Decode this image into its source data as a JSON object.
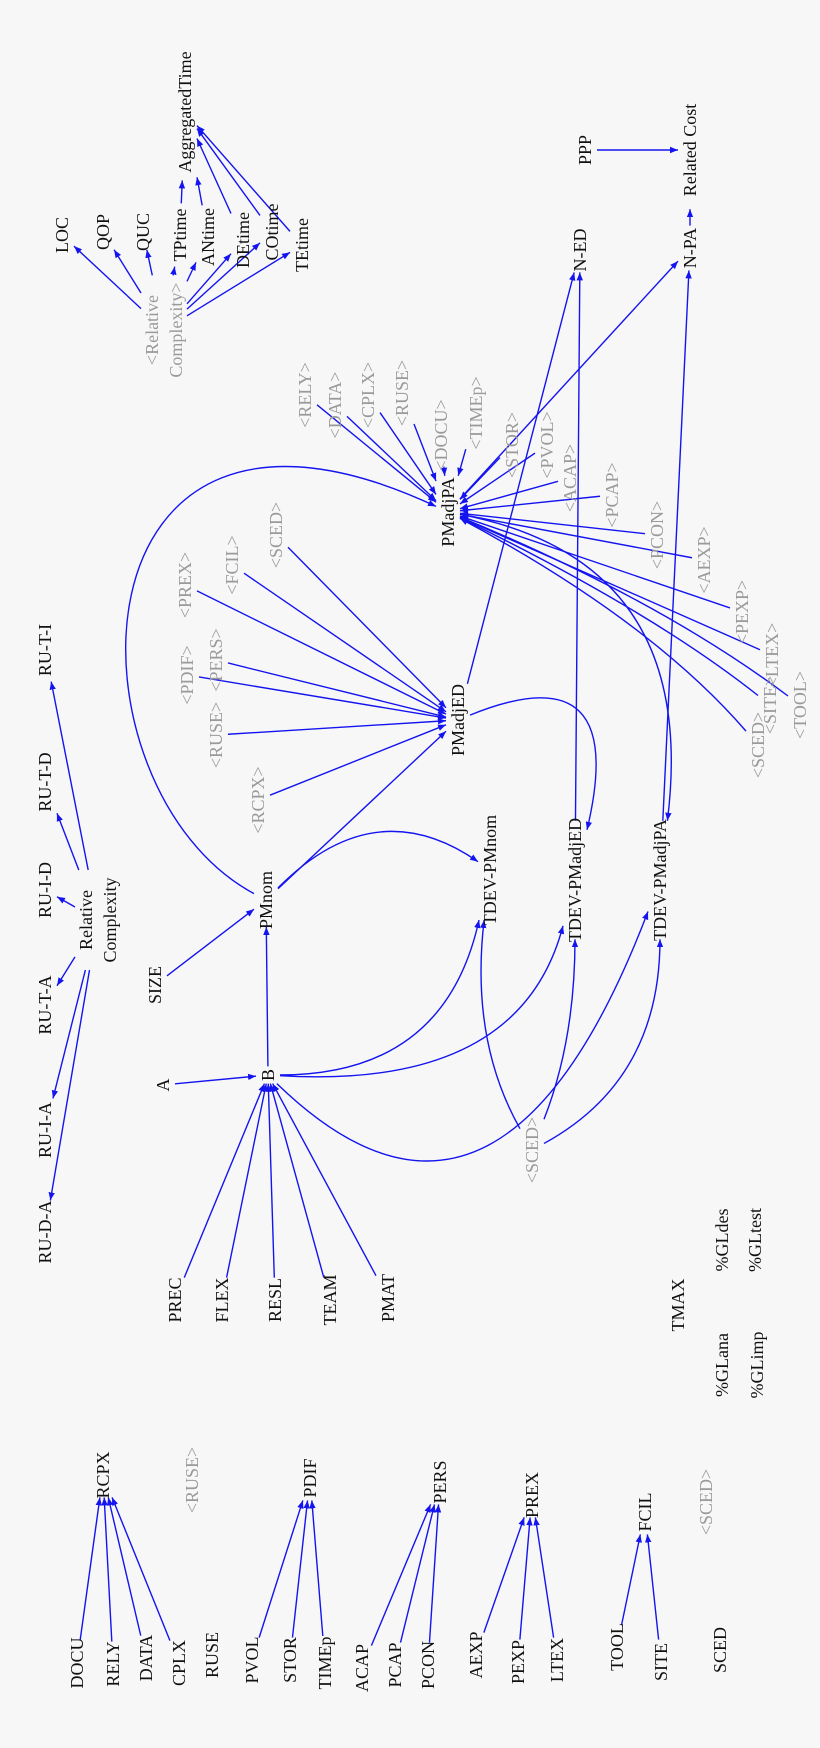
{
  "colors": {
    "edge": "#1414f0",
    "label": "#111111",
    "shadow_label": "#9a9a9a",
    "background": "#f7f7f7"
  },
  "nodes": {
    "LOC": {
      "label": [
        "LOC"
      ]
    },
    "QOP": {
      "label": [
        "QOP"
      ]
    },
    "QUC": {
      "label": [
        "QUC"
      ]
    },
    "TPtime": {
      "label": [
        "TPtime"
      ]
    },
    "ANtime": {
      "label": [
        "ANtime"
      ]
    },
    "DEtime": {
      "label": [
        "DEtime"
      ]
    },
    "COtime": {
      "label": [
        "COtime"
      ]
    },
    "TEtime": {
      "label": [
        "TEtime"
      ]
    },
    "AggregatedTime": {
      "label": [
        "AggregatedTime"
      ]
    },
    "s_RelComp": {
      "label": [
        "<Relative",
        "Complexity>"
      ],
      "shadow": true
    },
    "PPP": {
      "label": [
        "PPP"
      ]
    },
    "RelatedCost": {
      "label": [
        "Related Cost"
      ]
    },
    "N-ED": {
      "label": [
        "N-ED"
      ]
    },
    "N-PA": {
      "label": [
        "N-PA"
      ]
    },
    "PMadjPA": {
      "label": [
        "PMadjPA"
      ]
    },
    "PMadjED": {
      "label": [
        "PMadjED"
      ]
    },
    "s_RELY": {
      "label": [
        "<RELY>"
      ],
      "shadow": true
    },
    "s_DATA": {
      "label": [
        "<DATA>"
      ],
      "shadow": true
    },
    "s_CPLX": {
      "label": [
        "<CPLX>"
      ],
      "shadow": true
    },
    "s_RUSE1": {
      "label": [
        "<RUSE>"
      ],
      "shadow": true
    },
    "s_DOCU": {
      "label": [
        "<DOCU>"
      ],
      "shadow": true
    },
    "s_TIMEp": {
      "label": [
        "<TIMEp>"
      ],
      "shadow": true
    },
    "s_STOR": {
      "label": [
        "<STOR>"
      ],
      "shadow": true
    },
    "s_PVOL": {
      "label": [
        "<PVOL>"
      ],
      "shadow": true
    },
    "s_ACAP": {
      "label": [
        "<ACAP>"
      ],
      "shadow": true
    },
    "s_PCAP": {
      "label": [
        "<PCAP>"
      ],
      "shadow": true
    },
    "s_PCON": {
      "label": [
        "<PCON>"
      ],
      "shadow": true
    },
    "s_AEXP": {
      "label": [
        "<AEXP>"
      ],
      "shadow": true
    },
    "s_PEXP": {
      "label": [
        "<PEXP>"
      ],
      "shadow": true
    },
    "s_LTEX": {
      "label": [
        "<LTEX>"
      ],
      "shadow": true
    },
    "s_TOOL": {
      "label": [
        "<TOOL>"
      ],
      "shadow": true
    },
    "s_SITE": {
      "label": [
        "<SITE>"
      ],
      "shadow": true
    },
    "s_SCED3": {
      "label": [
        "<SCED>"
      ],
      "shadow": true
    },
    "s_PREX": {
      "label": [
        "<PREX>"
      ],
      "shadow": true
    },
    "s_FCIL": {
      "label": [
        "<FCIL>"
      ],
      "shadow": true
    },
    "s_SCED1": {
      "label": [
        "<SCED>"
      ],
      "shadow": true
    },
    "s_PDIF": {
      "label": [
        "<PDIF>"
      ],
      "shadow": true
    },
    "s_PERS": {
      "label": [
        "<PERS>"
      ],
      "shadow": true
    },
    "s_RUSE2": {
      "label": [
        "<RUSE>"
      ],
      "shadow": true
    },
    "s_RCPX": {
      "label": [
        "<RCPX>"
      ],
      "shadow": true
    },
    "RU-T-I": {
      "label": [
        "RU-T-I"
      ]
    },
    "RU-T-D": {
      "label": [
        "RU-T-D"
      ]
    },
    "RU-I-D": {
      "label": [
        "RU-I-D"
      ]
    },
    "RU-T-A": {
      "label": [
        "RU-T-A"
      ]
    },
    "RU-I-A": {
      "label": [
        "RU-I-A"
      ]
    },
    "RU-D-A": {
      "label": [
        "RU-D-A"
      ]
    },
    "RelComp": {
      "label": [
        "Relative",
        "Complexity"
      ]
    },
    "SIZE": {
      "label": [
        "SIZE"
      ]
    },
    "PMnom": {
      "label": [
        "PMnom"
      ]
    },
    "A": {
      "label": [
        "A"
      ]
    },
    "B": {
      "label": [
        "B"
      ]
    },
    "TDEV-PMnom": {
      "label": [
        "TDEV-PMnom"
      ]
    },
    "TDEV-PMadjED": {
      "label": [
        "TDEV-PMadjED"
      ]
    },
    "TDEV-PMadjPA": {
      "label": [
        "TDEV-PMadjPA"
      ]
    },
    "s_SCED4": {
      "label": [
        "<SCED>"
      ],
      "shadow": true
    },
    "PREC": {
      "label": [
        "PREC"
      ]
    },
    "FLEX": {
      "label": [
        "FLEX"
      ]
    },
    "RESL": {
      "label": [
        "RESL"
      ]
    },
    "TEAM": {
      "label": [
        "TEAM"
      ]
    },
    "PMAT": {
      "label": [
        "PMAT"
      ]
    },
    "TMAX": {
      "label": [
        "TMAX"
      ]
    },
    "GLdes": {
      "label": [
        "%GLdes"
      ]
    },
    "GLtest": {
      "label": [
        "%GLtest"
      ]
    },
    "GLana": {
      "label": [
        "%GLana"
      ]
    },
    "GLimp": {
      "label": [
        "%GLimp"
      ]
    },
    "RCPX": {
      "label": [
        "RCPX"
      ]
    },
    "s_RUSE3": {
      "label": [
        "<RUSE>"
      ],
      "shadow": true
    },
    "PDIF": {
      "label": [
        "PDIF"
      ]
    },
    "PERS": {
      "label": [
        "PERS"
      ]
    },
    "PREX": {
      "label": [
        "PREX"
      ]
    },
    "FCIL": {
      "label": [
        "FCIL"
      ]
    },
    "s_SCED2": {
      "label": [
        "<SCED>"
      ],
      "shadow": true
    },
    "DOCU": {
      "label": [
        "DOCU"
      ]
    },
    "RELY": {
      "label": [
        "RELY"
      ]
    },
    "DATA": {
      "label": [
        "DATA"
      ]
    },
    "CPLX": {
      "label": [
        "CPLX"
      ]
    },
    "RUSE": {
      "label": [
        "RUSE"
      ]
    },
    "PVOL": {
      "label": [
        "PVOL"
      ]
    },
    "STOR": {
      "label": [
        "STOR"
      ]
    },
    "TIMEp": {
      "label": [
        "TIMEp"
      ]
    },
    "ACAP": {
      "label": [
        "ACAP"
      ]
    },
    "PCAP": {
      "label": [
        "PCAP"
      ]
    },
    "PCON": {
      "label": [
        "PCON"
      ]
    },
    "AEXP": {
      "label": [
        "AEXP"
      ]
    },
    "PEXP": {
      "label": [
        "PEXP"
      ]
    },
    "LTEX": {
      "label": [
        "LTEX"
      ]
    },
    "TOOL": {
      "label": [
        "TOOL"
      ]
    },
    "SITE": {
      "label": [
        "SITE"
      ]
    },
    "SCED": {
      "label": [
        "SCED"
      ]
    }
  },
  "edges": [
    [
      "s_RelComp",
      "LOC"
    ],
    [
      "s_RelComp",
      "QOP"
    ],
    [
      "s_RelComp",
      "QUC"
    ],
    [
      "s_RelComp",
      "TPtime"
    ],
    [
      "s_RelComp",
      "ANtime"
    ],
    [
      "s_RelComp",
      "DEtime"
    ],
    [
      "s_RelComp",
      "COtime"
    ],
    [
      "s_RelComp",
      "TEtime"
    ],
    [
      "TPtime",
      "AggregatedTime"
    ],
    [
      "ANtime",
      "AggregatedTime"
    ],
    [
      "DEtime",
      "AggregatedTime"
    ],
    [
      "COtime",
      "AggregatedTime"
    ],
    [
      "TEtime",
      "AggregatedTime"
    ],
    [
      "PPP",
      "RelatedCost"
    ],
    [
      "N-PA",
      "RelatedCost"
    ],
    [
      "PMadjED",
      "N-ED"
    ],
    [
      "TDEV-PMadjED",
      "N-ED"
    ],
    [
      "PMadjPA",
      "N-PA"
    ],
    [
      "TDEV-PMadjPA",
      "N-PA"
    ],
    [
      "s_RELY",
      "PMadjPA"
    ],
    [
      "s_DATA",
      "PMadjPA"
    ],
    [
      "s_CPLX",
      "PMadjPA"
    ],
    [
      "s_RUSE1",
      "PMadjPA"
    ],
    [
      "s_DOCU",
      "PMadjPA"
    ],
    [
      "s_TIMEp",
      "PMadjPA"
    ],
    [
      "s_STOR",
      "PMadjPA"
    ],
    [
      "s_PVOL",
      "PMadjPA"
    ],
    [
      "s_ACAP",
      "PMadjPA"
    ],
    [
      "s_PCAP",
      "PMadjPA"
    ],
    [
      "s_PCON",
      "PMadjPA"
    ],
    [
      "s_AEXP",
      "PMadjPA"
    ],
    [
      "s_PEXP",
      "PMadjPA"
    ],
    [
      "s_LTEX",
      "PMadjPA"
    ],
    [
      "s_TOOL",
      "PMadjPA"
    ],
    [
      "s_SITE",
      "PMadjPA"
    ],
    [
      "s_SCED3",
      "PMadjPA"
    ],
    [
      "PMnom",
      "PMadjPA"
    ],
    [
      "PMadjPA",
      "TDEV-PMadjPA"
    ],
    [
      "s_PREX",
      "PMadjED"
    ],
    [
      "s_FCIL",
      "PMadjED"
    ],
    [
      "s_SCED1",
      "PMadjED"
    ],
    [
      "s_PDIF",
      "PMadjED"
    ],
    [
      "s_PERS",
      "PMadjED"
    ],
    [
      "s_RUSE2",
      "PMadjED"
    ],
    [
      "s_RCPX",
      "PMadjED"
    ],
    [
      "PMnom",
      "PMadjED"
    ],
    [
      "PMadjED",
      "TDEV-PMadjED"
    ],
    [
      "RelComp",
      "RU-T-I"
    ],
    [
      "RelComp",
      "RU-T-D"
    ],
    [
      "RelComp",
      "RU-I-D"
    ],
    [
      "RelComp",
      "RU-T-A"
    ],
    [
      "RelComp",
      "RU-I-A"
    ],
    [
      "RelComp",
      "RU-D-A"
    ],
    [
      "SIZE",
      "PMnom"
    ],
    [
      "A",
      "B"
    ],
    [
      "B",
      "PMnom"
    ],
    [
      "PMnom",
      "TDEV-PMnom"
    ],
    [
      "B",
      "TDEV-PMnom"
    ],
    [
      "B",
      "TDEV-PMadjED"
    ],
    [
      "B",
      "TDEV-PMadjPA"
    ],
    [
      "s_SCED4",
      "TDEV-PMnom"
    ],
    [
      "s_SCED4",
      "TDEV-PMadjED"
    ],
    [
      "s_SCED4",
      "TDEV-PMadjPA"
    ],
    [
      "PREC",
      "B"
    ],
    [
      "FLEX",
      "B"
    ],
    [
      "RESL",
      "B"
    ],
    [
      "TEAM",
      "B"
    ],
    [
      "PMAT",
      "B"
    ],
    [
      "DOCU",
      "RCPX"
    ],
    [
      "RELY",
      "RCPX"
    ],
    [
      "DATA",
      "RCPX"
    ],
    [
      "CPLX",
      "RCPX"
    ],
    [
      "PVOL",
      "PDIF"
    ],
    [
      "STOR",
      "PDIF"
    ],
    [
      "TIMEp",
      "PDIF"
    ],
    [
      "ACAP",
      "PERS"
    ],
    [
      "PCAP",
      "PERS"
    ],
    [
      "PCON",
      "PERS"
    ],
    [
      "AEXP",
      "PREX"
    ],
    [
      "PEXP",
      "PREX"
    ],
    [
      "LTEX",
      "PREX"
    ],
    [
      "TOOL",
      "FCIL"
    ],
    [
      "SITE",
      "FCIL"
    ]
  ]
}
